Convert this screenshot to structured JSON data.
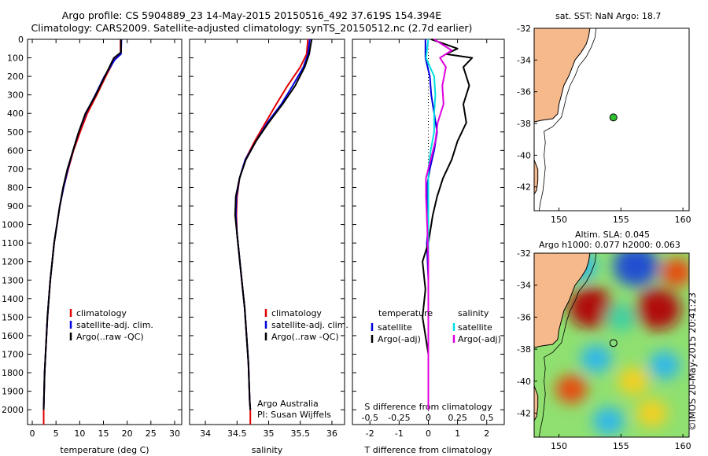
{
  "header": {
    "line1": "Argo profile: CS 5904889_23 14-May-2015 20150516_492 37.619S 154.394E",
    "line2": "Climatology: CARS2009. Satellite-adjusted climatology: synTS_20150512.nc (2.7d earlier)"
  },
  "colors": {
    "climatology": "#e00000",
    "satellite": "#0000e0",
    "argo": "#000000",
    "sal_satellite": "#00e0e0",
    "sal_argo": "#e000e0",
    "land": "#f6b98c"
  },
  "chart_data": [
    {
      "type": "line",
      "name": "temperature-profile",
      "xlabel": "temperature (deg C)",
      "ylabel": "",
      "xlim": [
        -1,
        31.5
      ],
      "ylim": [
        0,
        2080
      ],
      "xticks": [
        0,
        5,
        10,
        15,
        20,
        25,
        30
      ],
      "yticks": [
        0,
        100,
        200,
        300,
        400,
        500,
        600,
        700,
        800,
        900,
        1000,
        1100,
        1200,
        1300,
        1400,
        1500,
        1600,
        1700,
        1800,
        1900,
        2000
      ],
      "series": [
        {
          "name": "climatology",
          "color": "#e00000",
          "points": [
            [
              18.6,
              0
            ],
            [
              18.6,
              80
            ],
            [
              17.3,
              110
            ],
            [
              15.5,
              200
            ],
            [
              13.6,
              300
            ],
            [
              11.6,
              400
            ],
            [
              10.1,
              500
            ],
            [
              8.7,
              600
            ],
            [
              7.6,
              700
            ],
            [
              6.6,
              800
            ],
            [
              5.8,
              900
            ],
            [
              5.2,
              1000
            ],
            [
              4.6,
              1100
            ],
            [
              4.2,
              1200
            ],
            [
              3.8,
              1300
            ],
            [
              3.5,
              1400
            ],
            [
              3.2,
              1500
            ],
            [
              3.0,
              1600
            ],
            [
              2.8,
              1700
            ],
            [
              2.6,
              1800
            ],
            [
              2.5,
              1900
            ],
            [
              2.4,
              2000
            ],
            [
              2.4,
              2080
            ]
          ]
        },
        {
          "name": "satellite-adj. clim.",
          "color": "#0000e0",
          "points": [
            [
              18.8,
              0
            ],
            [
              18.7,
              80
            ],
            [
              17.4,
              110
            ],
            [
              15.2,
              200
            ],
            [
              13.3,
              300
            ],
            [
              11.3,
              400
            ],
            [
              9.8,
              500
            ],
            [
              8.6,
              600
            ],
            [
              7.5,
              700
            ],
            [
              6.6,
              800
            ],
            [
              5.8,
              900
            ],
            [
              5.2,
              1000
            ],
            [
              4.6,
              1100
            ],
            [
              4.2,
              1200
            ],
            [
              3.8,
              1300
            ],
            [
              3.5,
              1400
            ],
            [
              3.2,
              1500
            ],
            [
              3.0,
              1600
            ],
            [
              2.8,
              1700
            ],
            [
              2.6,
              1800
            ],
            [
              2.5,
              1900
            ],
            [
              2.4,
              2000
            ]
          ]
        },
        {
          "name": "Argo(..raw -QC)",
          "color": "#000000",
          "points": [
            [
              18.7,
              0
            ],
            [
              18.7,
              70
            ],
            [
              17.2,
              100
            ],
            [
              15.3,
              200
            ],
            [
              13.4,
              300
            ],
            [
              11.2,
              400
            ],
            [
              9.8,
              500
            ],
            [
              8.6,
              600
            ],
            [
              7.4,
              700
            ],
            [
              6.5,
              800
            ],
            [
              5.8,
              900
            ],
            [
              5.2,
              1000
            ],
            [
              4.6,
              1100
            ],
            [
              4.2,
              1200
            ],
            [
              3.8,
              1300
            ],
            [
              3.5,
              1400
            ],
            [
              3.2,
              1500
            ],
            [
              3.0,
              1600
            ],
            [
              2.8,
              1700
            ],
            [
              2.6,
              1800
            ],
            [
              2.5,
              1900
            ],
            [
              2.4,
              2000
            ]
          ]
        }
      ],
      "legend": [
        "climatology",
        "satellite-adj. clim.",
        "Argo(..raw -QC)"
      ]
    },
    {
      "type": "line",
      "name": "salinity-profile",
      "xlabel": "salinity",
      "xlim": [
        33.75,
        36.2
      ],
      "ylim": [
        0,
        2080
      ],
      "xticks": [
        34,
        34.5,
        35,
        35.5,
        36
      ],
      "series": [
        {
          "name": "climatology",
          "color": "#e00000",
          "points": [
            [
              35.62,
              0
            ],
            [
              35.6,
              80
            ],
            [
              35.5,
              150
            ],
            [
              35.3,
              250
            ],
            [
              35.12,
              350
            ],
            [
              34.95,
              450
            ],
            [
              34.78,
              550
            ],
            [
              34.63,
              650
            ],
            [
              34.54,
              750
            ],
            [
              34.5,
              850
            ],
            [
              34.49,
              950
            ],
            [
              34.5,
              1050
            ],
            [
              34.53,
              1150
            ],
            [
              34.56,
              1250
            ],
            [
              34.59,
              1350
            ],
            [
              34.62,
              1450
            ],
            [
              34.64,
              1550
            ],
            [
              34.66,
              1650
            ],
            [
              34.68,
              1750
            ],
            [
              34.69,
              1850
            ],
            [
              34.7,
              1950
            ],
            [
              34.71,
              2000
            ],
            [
              34.71,
              2080
            ]
          ]
        },
        {
          "name": "satellite-adj. clim.",
          "color": "#0000e0",
          "points": [
            [
              35.65,
              0
            ],
            [
              35.62,
              80
            ],
            [
              35.55,
              150
            ],
            [
              35.38,
              250
            ],
            [
              35.2,
              350
            ],
            [
              34.98,
              450
            ],
            [
              34.8,
              550
            ],
            [
              34.63,
              650
            ],
            [
              34.54,
              750
            ],
            [
              34.49,
              850
            ],
            [
              34.48,
              950
            ],
            [
              34.5,
              1050
            ],
            [
              34.53,
              1150
            ],
            [
              34.56,
              1250
            ],
            [
              34.59,
              1350
            ],
            [
              34.62,
              1450
            ],
            [
              34.64,
              1550
            ],
            [
              34.66,
              1650
            ],
            [
              34.68,
              1750
            ],
            [
              34.69,
              1850
            ],
            [
              34.7,
              1950
            ],
            [
              34.71,
              2000
            ]
          ]
        },
        {
          "name": "Argo(..raw -QC)",
          "color": "#000000",
          "points": [
            [
              35.68,
              0
            ],
            [
              35.64,
              80
            ],
            [
              35.57,
              150
            ],
            [
              35.42,
              250
            ],
            [
              35.22,
              350
            ],
            [
              35.0,
              450
            ],
            [
              34.8,
              550
            ],
            [
              34.64,
              650
            ],
            [
              34.54,
              750
            ],
            [
              34.48,
              850
            ],
            [
              34.47,
              950
            ],
            [
              34.5,
              1050
            ],
            [
              34.53,
              1150
            ],
            [
              34.56,
              1250
            ],
            [
              34.59,
              1350
            ],
            [
              34.62,
              1450
            ],
            [
              34.64,
              1550
            ],
            [
              34.66,
              1650
            ],
            [
              34.68,
              1750
            ],
            [
              34.69,
              1850
            ],
            [
              34.7,
              1950
            ],
            [
              34.71,
              2000
            ]
          ]
        }
      ],
      "legend": [
        "climatology",
        "satellite-adj. clim.",
        "Argo(..raw -QC)"
      ],
      "annotation": [
        "Argo Australia",
        "PI: Susan Wijffels"
      ]
    },
    {
      "type": "line",
      "name": "difference-profile",
      "xlabel": "T difference from climatology",
      "x2label": "S difference from climatology",
      "xlim": [
        -2.6,
        2.6
      ],
      "ylim": [
        0,
        2080
      ],
      "xticks": [
        -2,
        -1,
        0,
        1,
        2
      ],
      "x2lim": [
        -0.65,
        0.65
      ],
      "x2ticks": [
        -0.5,
        -0.25,
        0,
        0.25,
        0.5
      ],
      "series": [
        {
          "name": "temperature satellite",
          "color": "#0000e0",
          "points": [
            [
              -0.1,
              0
            ],
            [
              -0.1,
              100
            ],
            [
              0.05,
              200
            ],
            [
              0.1,
              300
            ],
            [
              0.2,
              400
            ],
            [
              0.3,
              500
            ],
            [
              0.2,
              600
            ],
            [
              0.05,
              700
            ],
            [
              -0.05,
              800
            ],
            [
              -0.05,
              900
            ],
            [
              0.0,
              1000
            ],
            [
              -0.05,
              1100
            ],
            [
              0.0,
              1300
            ],
            [
              0.0,
              1500
            ],
            [
              0.0,
              1700
            ],
            [
              0.0,
              1900
            ],
            [
              0.0,
              2000
            ]
          ]
        },
        {
          "name": "temperature Argo(-adj)",
          "color": "#000000",
          "points": [
            [
              0.1,
              0
            ],
            [
              1.0,
              50
            ],
            [
              0.6,
              80
            ],
            [
              1.5,
              100
            ],
            [
              1.2,
              150
            ],
            [
              1.4,
              250
            ],
            [
              1.2,
              350
            ],
            [
              1.3,
              450
            ],
            [
              1.0,
              550
            ],
            [
              0.8,
              650
            ],
            [
              0.5,
              750
            ],
            [
              0.3,
              850
            ],
            [
              0.15,
              950
            ],
            [
              0.0,
              1100
            ],
            [
              -0.2,
              1200
            ],
            [
              -0.1,
              1350
            ],
            [
              -0.2,
              1500
            ],
            [
              0.0,
              1700
            ],
            [
              0.0,
              1900
            ],
            [
              0.0,
              2000
            ]
          ]
        },
        {
          "name": "salinity satellite",
          "color": "#00e0e0",
          "points": [
            [
              0.0,
              0
            ],
            [
              -0.02,
              100
            ],
            [
              0.05,
              200
            ],
            [
              0.06,
              300
            ],
            [
              0.05,
              400
            ],
            [
              0.05,
              500
            ],
            [
              0.02,
              600
            ],
            [
              0.0,
              700
            ],
            [
              0.0,
              900
            ],
            [
              0.0,
              1100
            ],
            [
              0.0,
              1300
            ],
            [
              0.0,
              1500
            ],
            [
              0.0,
              1700
            ],
            [
              0.0,
              1900
            ],
            [
              0.0,
              2000
            ]
          ]
        },
        {
          "name": "salinity Argo(-adj)",
          "color": "#e000e0",
          "points": [
            [
              0.05,
              0
            ],
            [
              0.2,
              60
            ],
            [
              0.1,
              100
            ],
            [
              0.15,
              150
            ],
            [
              0.12,
              250
            ],
            [
              0.13,
              350
            ],
            [
              0.08,
              450
            ],
            [
              0.06,
              550
            ],
            [
              0.02,
              650
            ],
            [
              -0.02,
              750
            ],
            [
              -0.02,
              850
            ],
            [
              -0.01,
              1000
            ],
            [
              0.0,
              1200
            ],
            [
              0.0,
              1400
            ],
            [
              0.0,
              1600
            ],
            [
              0.0,
              1800
            ],
            [
              0.0,
              2000
            ]
          ]
        }
      ],
      "legend_temperature": {
        "header": "temperature",
        "items": [
          "satellite",
          "Argo(-adj)"
        ]
      },
      "legend_salinity": {
        "header": "salinity",
        "items": [
          "satellite",
          "Argo(-adj)"
        ]
      }
    },
    {
      "type": "map",
      "name": "sst-map",
      "title": "sat. SST: NaN Argo: 18.7",
      "xlim": [
        148,
        160.5
      ],
      "ylim": [
        -43.5,
        -32
      ],
      "xticks": [
        150,
        155,
        160
      ],
      "yticks": [
        -32,
        -34,
        -36,
        -38,
        -40,
        -42
      ],
      "marker": {
        "lon": 154.394,
        "lat": -37.619
      }
    },
    {
      "type": "heatmap",
      "name": "sla-map",
      "title_line1": "Altim. SLA: 0.045",
      "title_line2": "Argo h1000: 0.077 h2000: 0.063",
      "xlim": [
        148,
        160.5
      ],
      "ylim": [
        -43.5,
        -32
      ],
      "xticks": [
        150,
        155,
        160
      ],
      "yticks": [
        -32,
        -34,
        -36,
        -38,
        -40,
        -42
      ],
      "marker": {
        "lon": 154.394,
        "lat": -37.619
      },
      "features": [
        {
          "lon": 152.6,
          "lat": -35.4,
          "value": 1.0
        },
        {
          "lon": 158.0,
          "lat": -35.5,
          "value": 1.0
        },
        {
          "lon": 156.2,
          "lat": -32.8,
          "value": -1.0
        },
        {
          "lon": 151.8,
          "lat": -32.8,
          "value": -0.7
        },
        {
          "lon": 155.0,
          "lat": -36.0,
          "value": -0.5
        },
        {
          "lon": 158.5,
          "lat": -39.0,
          "value": -0.8
        },
        {
          "lon": 151.0,
          "lat": -40.5,
          "value": 0.7
        },
        {
          "lon": 156.0,
          "lat": -40.0,
          "value": 0.5
        },
        {
          "lon": 154.0,
          "lat": -42.5,
          "value": -0.6
        },
        {
          "lon": 159.5,
          "lat": -33.2,
          "value": 0.6
        },
        {
          "lon": 153.0,
          "lat": -38.6,
          "value": -0.6
        },
        {
          "lon": 157.5,
          "lat": -42.0,
          "value": 0.4
        }
      ]
    }
  ],
  "side_label": "©IMOS 20-May-2015 20:41:23"
}
